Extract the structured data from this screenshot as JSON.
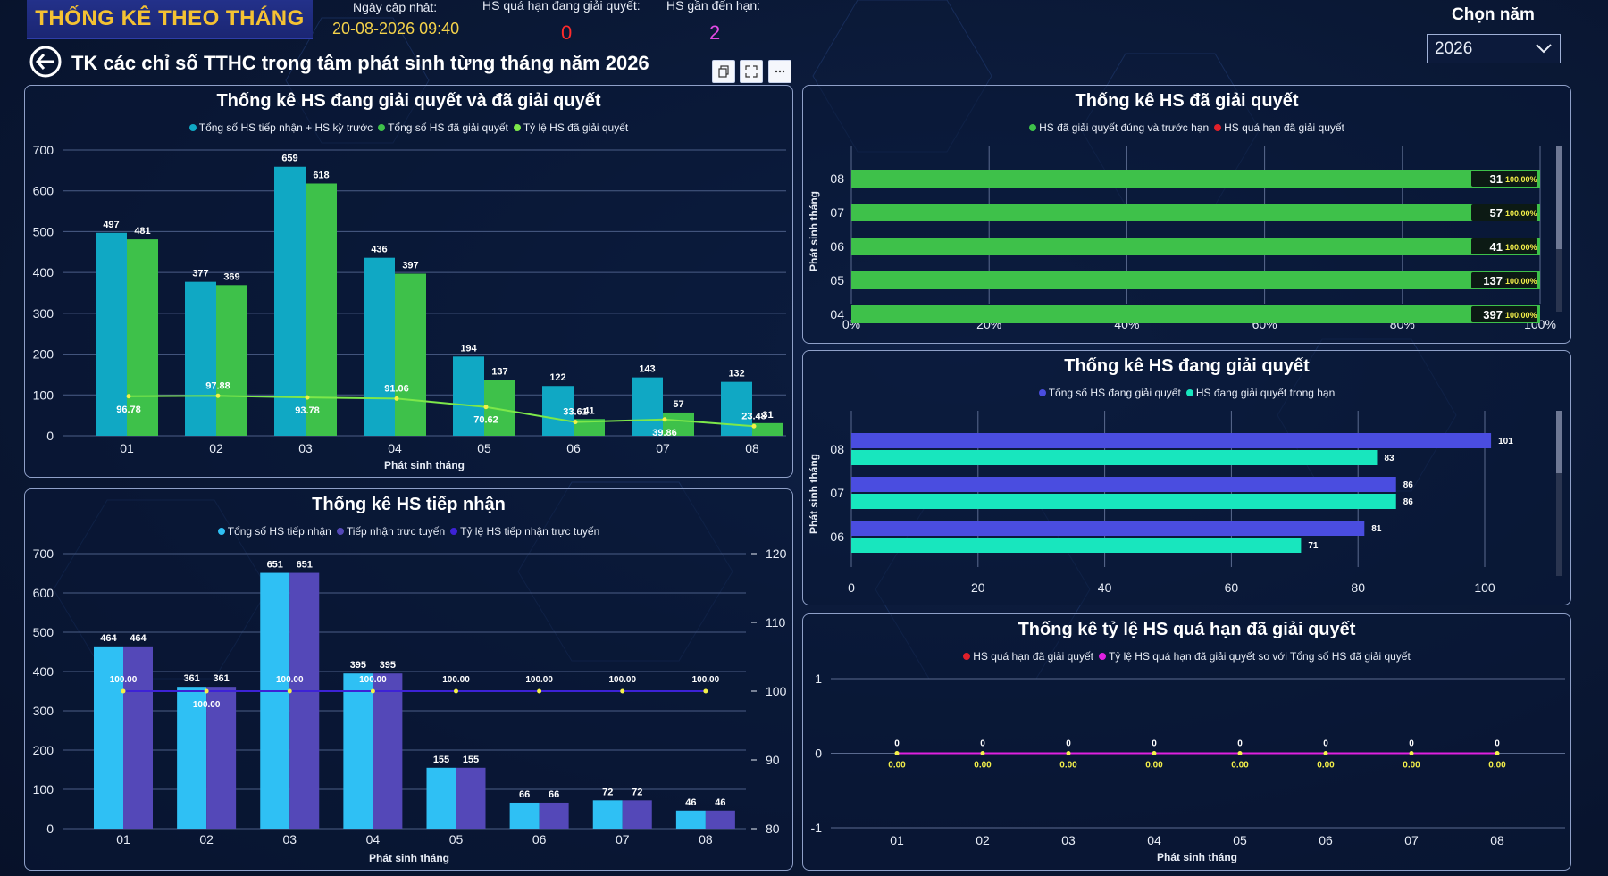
{
  "header": {
    "badge": "THỐNG KÊ THEO THÁNG",
    "updated_label": "Ngày cập nhật:",
    "updated_value": "20-08-2026 09:40",
    "overdue_label": "HS quá hạn đang giải quyết:",
    "overdue_value": "0",
    "near_due_label": "HS gần đến hạn:",
    "near_due_value": "2",
    "year_label": "Chọn năm",
    "year_value": "2026",
    "page_title": "TK các chỉ số TTHC trọng tâm phát sinh từng tháng năm 2026"
  },
  "colors": {
    "teal": "#10a8c4",
    "green": "#3ec14a",
    "lime": "#7de84a",
    "sky": "#2fc0f4",
    "indigo": "#5448b8",
    "violet": "#3d22d6",
    "blue": "#4a4de0",
    "aqua": "#18e6be",
    "red": "#e0202a",
    "magenta": "#e020e0",
    "yellow": "#f4f04a"
  },
  "chart_data": [
    {
      "id": "resolving_and_resolved",
      "type": "bar",
      "title": "Thống kê HS đang giải quyết và đã giải quyết",
      "xlabel": "Phát sinh tháng",
      "categories": [
        "01",
        "02",
        "03",
        "04",
        "05",
        "06",
        "07",
        "08"
      ],
      "ylim": [
        0,
        700
      ],
      "yticks": [
        0,
        100,
        200,
        300,
        400,
        500,
        600,
        700
      ],
      "series": [
        {
          "name": "Tổng số HS tiếp nhận + HS kỳ trước",
          "type": "bar",
          "values": [
            497,
            377,
            659,
            436,
            194,
            122,
            143,
            132
          ]
        },
        {
          "name": "Tổng số HS đã giải quyết",
          "type": "bar",
          "values": [
            481,
            369,
            618,
            397,
            137,
            41,
            57,
            31
          ]
        },
        {
          "name": "Tỷ lệ HS đã giải quyết",
          "type": "line",
          "values": [
            96.78,
            97.88,
            93.78,
            91.06,
            70.62,
            33.61,
            39.86,
            23.48
          ]
        }
      ]
    },
    {
      "id": "resolved",
      "type": "bar",
      "orientation": "horizontal",
      "stacked": "percent",
      "title": "Thống kê HS đã giải quyết",
      "ylabel": "Phát sinh tháng",
      "categories": [
        "08",
        "07",
        "06",
        "05",
        "04"
      ],
      "xticks": [
        "0%",
        "20%",
        "40%",
        "60%",
        "80%",
        "100%"
      ],
      "series": [
        {
          "name": "HS đã giải quyết đúng và trước hạn",
          "values": [
            31,
            57,
            41,
            137,
            397
          ],
          "labels": [
            "100.00%",
            "100.00%",
            "100.00%",
            "100.00%",
            "100.00%"
          ]
        },
        {
          "name": "HS quá hạn đã giải quyết",
          "values": [
            0,
            0,
            0,
            0,
            0
          ]
        }
      ]
    },
    {
      "id": "resolving",
      "type": "bar",
      "orientation": "horizontal",
      "title": "Thống kê HS đang giải quyết",
      "ylabel": "Phát sinh tháng",
      "categories": [
        "08",
        "07",
        "06"
      ],
      "xlim": [
        0,
        100
      ],
      "xticks": [
        0,
        20,
        40,
        60,
        80,
        100
      ],
      "series": [
        {
          "name": "Tổng số HS đang giải quyết",
          "values": [
            101,
            86,
            81
          ]
        },
        {
          "name": "HS đang giải quyết trong hạn",
          "values": [
            83,
            86,
            71
          ]
        }
      ]
    },
    {
      "id": "received",
      "type": "bar",
      "title": "Thống kê HS tiếp nhận",
      "xlabel": "Phát sinh tháng",
      "categories": [
        "01",
        "02",
        "03",
        "04",
        "05",
        "06",
        "07",
        "08"
      ],
      "ylim": [
        0,
        700
      ],
      "yticks": [
        0,
        100,
        200,
        300,
        400,
        500,
        600,
        700
      ],
      "y2lim": [
        80,
        120
      ],
      "y2ticks": [
        80,
        90,
        100,
        110,
        120
      ],
      "series": [
        {
          "name": "Tổng số HS tiếp nhận",
          "type": "bar",
          "values": [
            464,
            361,
            651,
            395,
            155,
            66,
            72,
            46
          ]
        },
        {
          "name": "Tiếp nhận trực tuyến",
          "type": "bar",
          "values": [
            464,
            361,
            651,
            395,
            155,
            66,
            72,
            46
          ]
        },
        {
          "name": "Tỷ lệ HS tiếp nhận trực tuyến",
          "type": "line",
          "axis": "y2",
          "values": [
            100.0,
            100.0,
            100.0,
            100.0,
            100.0,
            100.0,
            100.0,
            100.0
          ]
        }
      ]
    },
    {
      "id": "overdue_rate",
      "type": "line",
      "title": "Thống kê tỷ lệ HS quá hạn đã giải quyết",
      "xlabel": "Phát sinh tháng",
      "categories": [
        "01",
        "02",
        "03",
        "04",
        "05",
        "06",
        "07",
        "08"
      ],
      "ylim": [
        -1,
        1
      ],
      "yticks": [
        -1,
        0,
        1
      ],
      "series": [
        {
          "name": "HS quá hạn đã giải quyết",
          "values": [
            0,
            0,
            0,
            0,
            0,
            0,
            0,
            0
          ]
        },
        {
          "name": "Tỷ lệ HS quá hạn đã giải quyết so với Tổng số HS đã giải quyết",
          "values": [
            0.0,
            0.0,
            0.0,
            0.0,
            0.0,
            0.0,
            0.0,
            0.0
          ]
        }
      ]
    }
  ]
}
